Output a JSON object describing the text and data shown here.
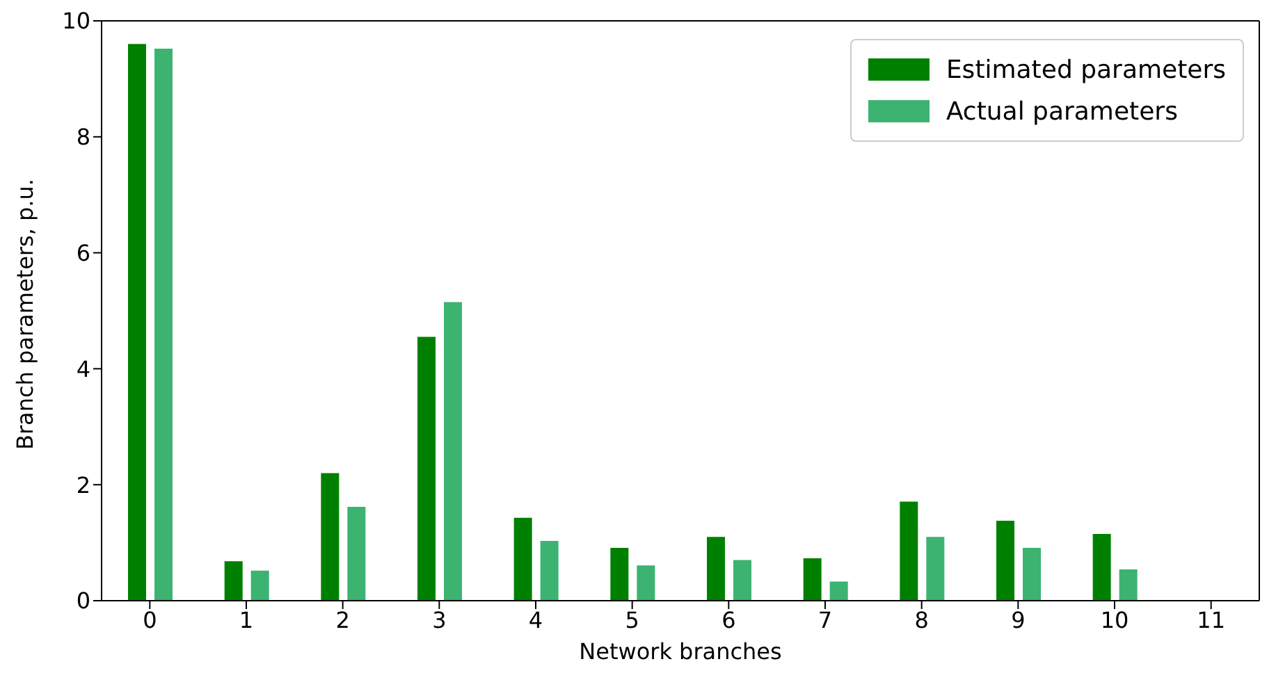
{
  "chart_data": {
    "type": "bar",
    "xlabel": "Network branches",
    "ylabel": "Branch parameters, p.u.",
    "categories": [
      "0",
      "1",
      "2",
      "3",
      "4",
      "5",
      "6",
      "7",
      "8",
      "9",
      "10",
      "11"
    ],
    "series": [
      {
        "name": "Estimated parameters",
        "color": "#008000",
        "values": [
          9.6,
          0.68,
          2.2,
          4.55,
          1.43,
          0.91,
          1.1,
          0.73,
          1.71,
          1.38,
          1.15,
          null
        ]
      },
      {
        "name": "Actual parameters",
        "color": "#3cb371",
        "values": [
          9.52,
          0.52,
          1.62,
          5.15,
          1.03,
          0.61,
          0.7,
          0.33,
          1.1,
          0.91,
          0.54,
          null
        ]
      }
    ],
    "ylim": [
      0,
      10
    ],
    "yticks": [
      0,
      2,
      4,
      6,
      8,
      10
    ],
    "grid": false,
    "legend": "top right"
  }
}
